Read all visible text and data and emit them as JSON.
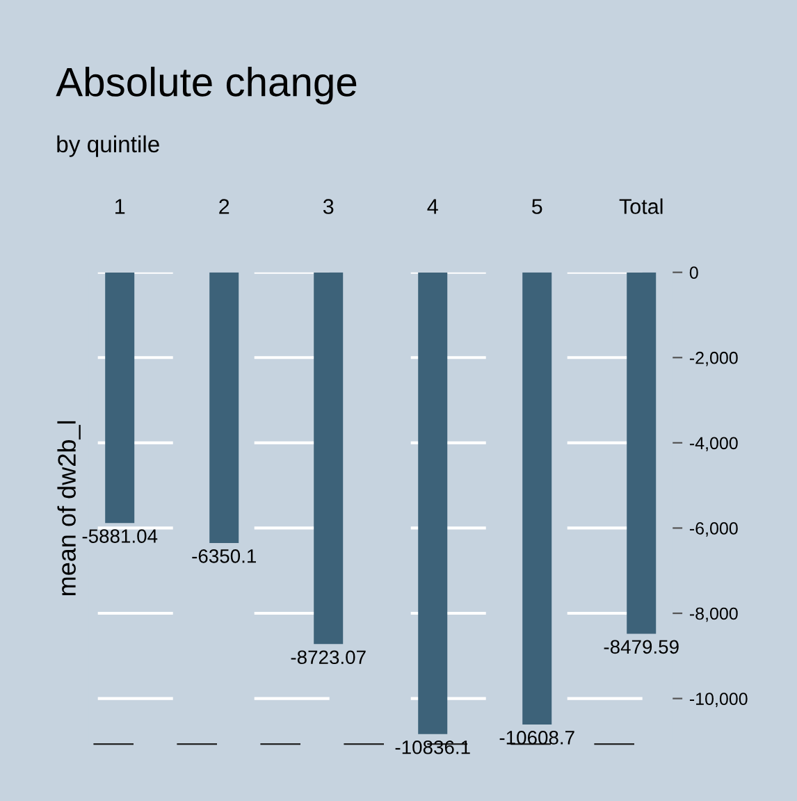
{
  "chart_data": {
    "type": "bar",
    "title": "Absolute change",
    "subtitle": "by quintile",
    "ylabel": "mean of dw2b_l",
    "categories": [
      "1",
      "2",
      "3",
      "4",
      "5",
      "Total"
    ],
    "values": [
      -5881.04,
      -6350.1,
      -8723.07,
      -10836.1,
      -10608.7,
      -8479.59
    ],
    "color": "#3d6279",
    "ylim": [
      -11070,
      0
    ],
    "yticks": [
      0,
      {
        "value": -2000,
        "label": "-2,000"
      },
      {
        "value": -4000,
        "label": "-4,000"
      },
      {
        "value": -6000,
        "label": "-6,000"
      },
      {
        "value": -8000,
        "label": "-8,000"
      },
      {
        "value": -10000,
        "label": "-10,000"
      }
    ],
    "grid": "y",
    "data_labels": true
  }
}
